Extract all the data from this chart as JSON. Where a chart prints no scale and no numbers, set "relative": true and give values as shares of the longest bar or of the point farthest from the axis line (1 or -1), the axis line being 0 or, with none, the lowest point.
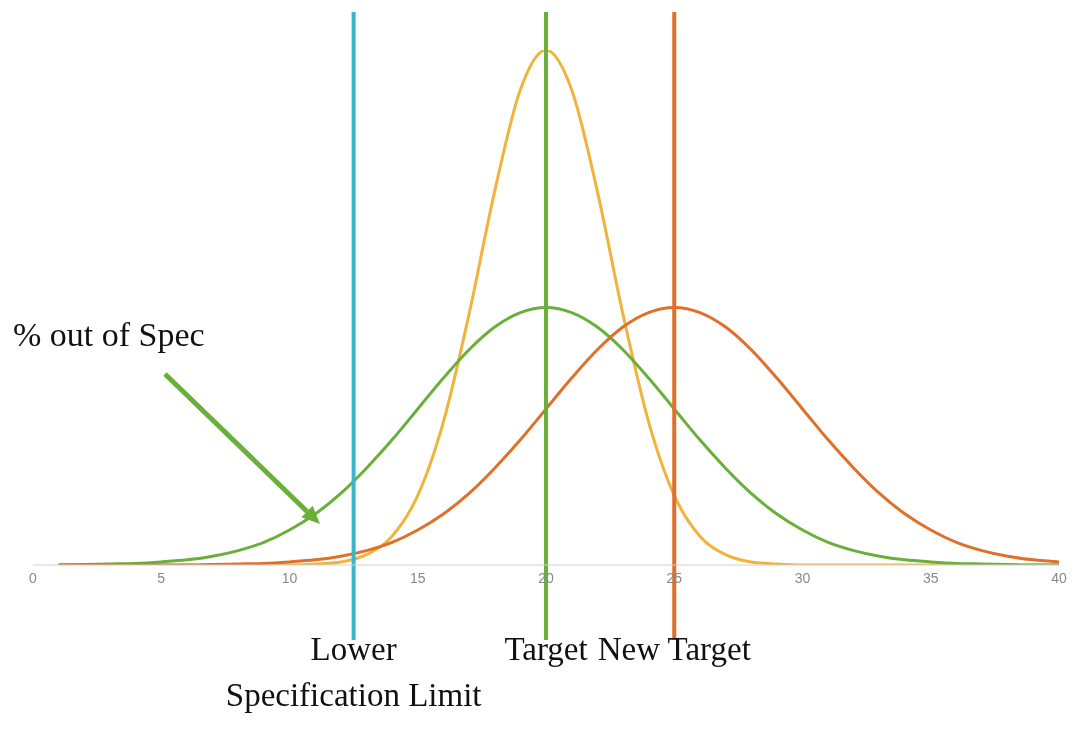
{
  "chart_data": {
    "type": "line",
    "relative": true,
    "x": [
      1,
      2,
      3,
      4,
      5,
      6,
      7,
      8,
      9,
      10,
      11,
      12,
      13,
      14,
      15,
      16,
      17,
      18,
      19,
      20,
      21,
      22,
      23,
      24,
      25,
      26,
      27,
      28,
      29,
      30,
      31,
      32,
      33,
      34,
      35,
      36,
      37,
      38,
      39,
      40
    ],
    "xlim": [
      0,
      40
    ],
    "xticks": [
      0,
      5,
      10,
      15,
      20,
      25,
      30,
      35,
      40
    ],
    "series": [
      {
        "color": "#f0b43c",
        "values": [
          0,
          0,
          0,
          0,
          0,
          0,
          0,
          0,
          0,
          0,
          0.002,
          0.006,
          0.02,
          0.056,
          0.135,
          0.278,
          0.487,
          0.726,
          0.923,
          1,
          0.923,
          0.726,
          0.487,
          0.278,
          0.135,
          0.056,
          0.02,
          0.006,
          0.002,
          0,
          0,
          0,
          0,
          0,
          0,
          0,
          0,
          0,
          0,
          0
        ]
      },
      {
        "color": "#6aaf3a",
        "values": [
          0,
          0.001,
          0.002,
          0.003,
          0.006,
          0.01,
          0.017,
          0.028,
          0.044,
          0.068,
          0.099,
          0.139,
          0.188,
          0.243,
          0.303,
          0.363,
          0.418,
          0.462,
          0.49,
          0.5,
          0.49,
          0.462,
          0.418,
          0.363,
          0.303,
          0.243,
          0.188,
          0.139,
          0.099,
          0.068,
          0.044,
          0.028,
          0.017,
          0.01,
          0.006,
          0.003,
          0.002,
          0.001,
          0,
          0
        ]
      },
      {
        "color": "#e06f2a",
        "values": [
          0,
          0,
          0,
          0,
          0,
          0,
          0.001,
          0.002,
          0.003,
          0.006,
          0.01,
          0.017,
          0.028,
          0.044,
          0.068,
          0.099,
          0.139,
          0.188,
          0.243,
          0.303,
          0.363,
          0.418,
          0.462,
          0.49,
          0.5,
          0.49,
          0.462,
          0.418,
          0.363,
          0.303,
          0.243,
          0.188,
          0.139,
          0.099,
          0.068,
          0.044,
          0.028,
          0.017,
          0.01,
          0.006
        ]
      }
    ],
    "ref_lines": [
      {
        "axis": "x",
        "value": 12.5,
        "label": "Lower Specification Limit",
        "color": "#3ab5cc"
      },
      {
        "axis": "x",
        "value": 20,
        "label": "Target",
        "color": "#6aaf3a"
      },
      {
        "axis": "x",
        "value": 25,
        "label": "New Target",
        "color": "#e06f2a"
      }
    ],
    "annotations": [
      "% out of Spec"
    ],
    "grid": false,
    "legend": false,
    "marker": "none",
    "line_style": "solid"
  }
}
